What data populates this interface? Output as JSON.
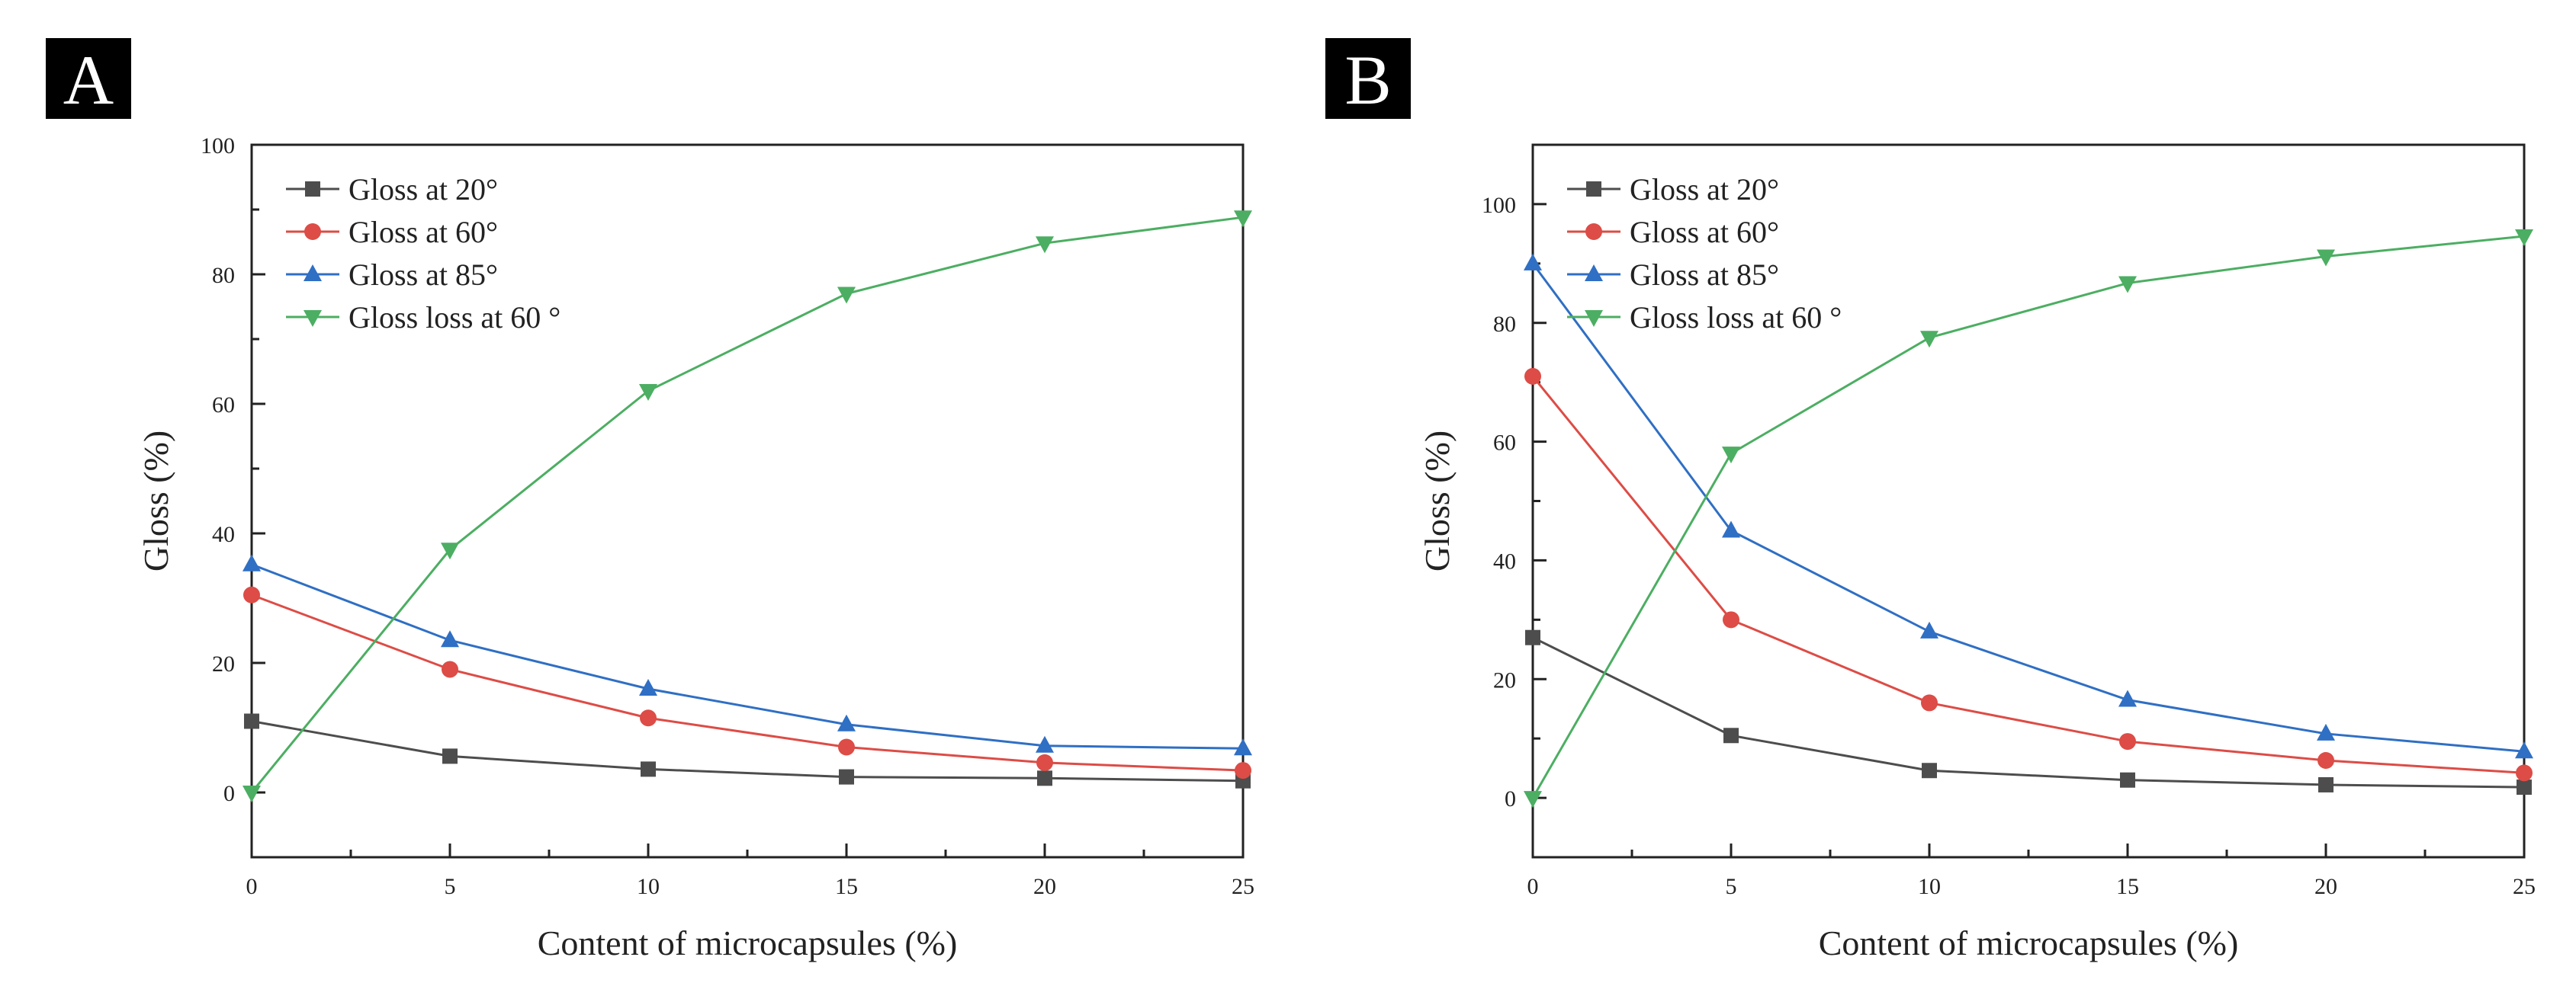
{
  "chart_data": [
    {
      "panel": "A",
      "type": "line",
      "xlabel": "Content of microcapsules (%)",
      "ylabel": "Gloss (%)",
      "xlim": [
        0,
        25
      ],
      "ylim": [
        -10,
        100
      ],
      "xticks": [
        0,
        5,
        10,
        15,
        20,
        25
      ],
      "yticks": [
        0,
        20,
        40,
        60,
        80,
        100
      ],
      "legend_position": "top-left",
      "x": [
        0,
        5,
        10,
        15,
        20,
        25
      ],
      "series": [
        {
          "name": "Gloss at 20°",
          "color": "#4d4d4d",
          "marker": "square",
          "values": [
            11,
            5.6,
            3.6,
            2.4,
            2.2,
            1.8
          ]
        },
        {
          "name": "Gloss at 60°",
          "color": "#dd4c46",
          "marker": "circle",
          "values": [
            30.5,
            19,
            11.5,
            7,
            4.6,
            3.4
          ]
        },
        {
          "name": "Gloss at 85°",
          "color": "#2f6fc4",
          "marker": "triangle-up",
          "values": [
            35.2,
            23.5,
            16,
            10.5,
            7.2,
            6.8
          ]
        },
        {
          "name": "Gloss loss at 60 °",
          "color": "#4cae62",
          "marker": "triangle-down",
          "values": [
            0,
            37.5,
            62,
            77,
            84.8,
            88.8
          ]
        }
      ]
    },
    {
      "panel": "B",
      "type": "line",
      "xlabel": "Content of microcapsules (%)",
      "ylabel": "Gloss (%)",
      "xlim": [
        0,
        25
      ],
      "ylim": [
        -10,
        110
      ],
      "xticks": [
        0,
        5,
        10,
        15,
        20,
        25
      ],
      "yticks": [
        0,
        20,
        40,
        60,
        80,
        100
      ],
      "legend_position": "top-left",
      "x": [
        0,
        5,
        10,
        15,
        20,
        25
      ],
      "series": [
        {
          "name": "Gloss at 20°",
          "color": "#4d4d4d",
          "marker": "square",
          "values": [
            27,
            10.5,
            4.6,
            3,
            2.2,
            1.8
          ]
        },
        {
          "name": "Gloss at 60°",
          "color": "#dd4c46",
          "marker": "circle",
          "values": [
            71,
            30,
            16,
            9.5,
            6.3,
            4.2
          ]
        },
        {
          "name": "Gloss at 85°",
          "color": "#2f6fc4",
          "marker": "triangle-up",
          "values": [
            90,
            45,
            28,
            16.5,
            10.8,
            7.8
          ]
        },
        {
          "name": "Gloss loss at 60 °",
          "color": "#4cae62",
          "marker": "triangle-down",
          "values": [
            0,
            58,
            77.5,
            86.7,
            91.2,
            94.6
          ]
        }
      ]
    }
  ]
}
